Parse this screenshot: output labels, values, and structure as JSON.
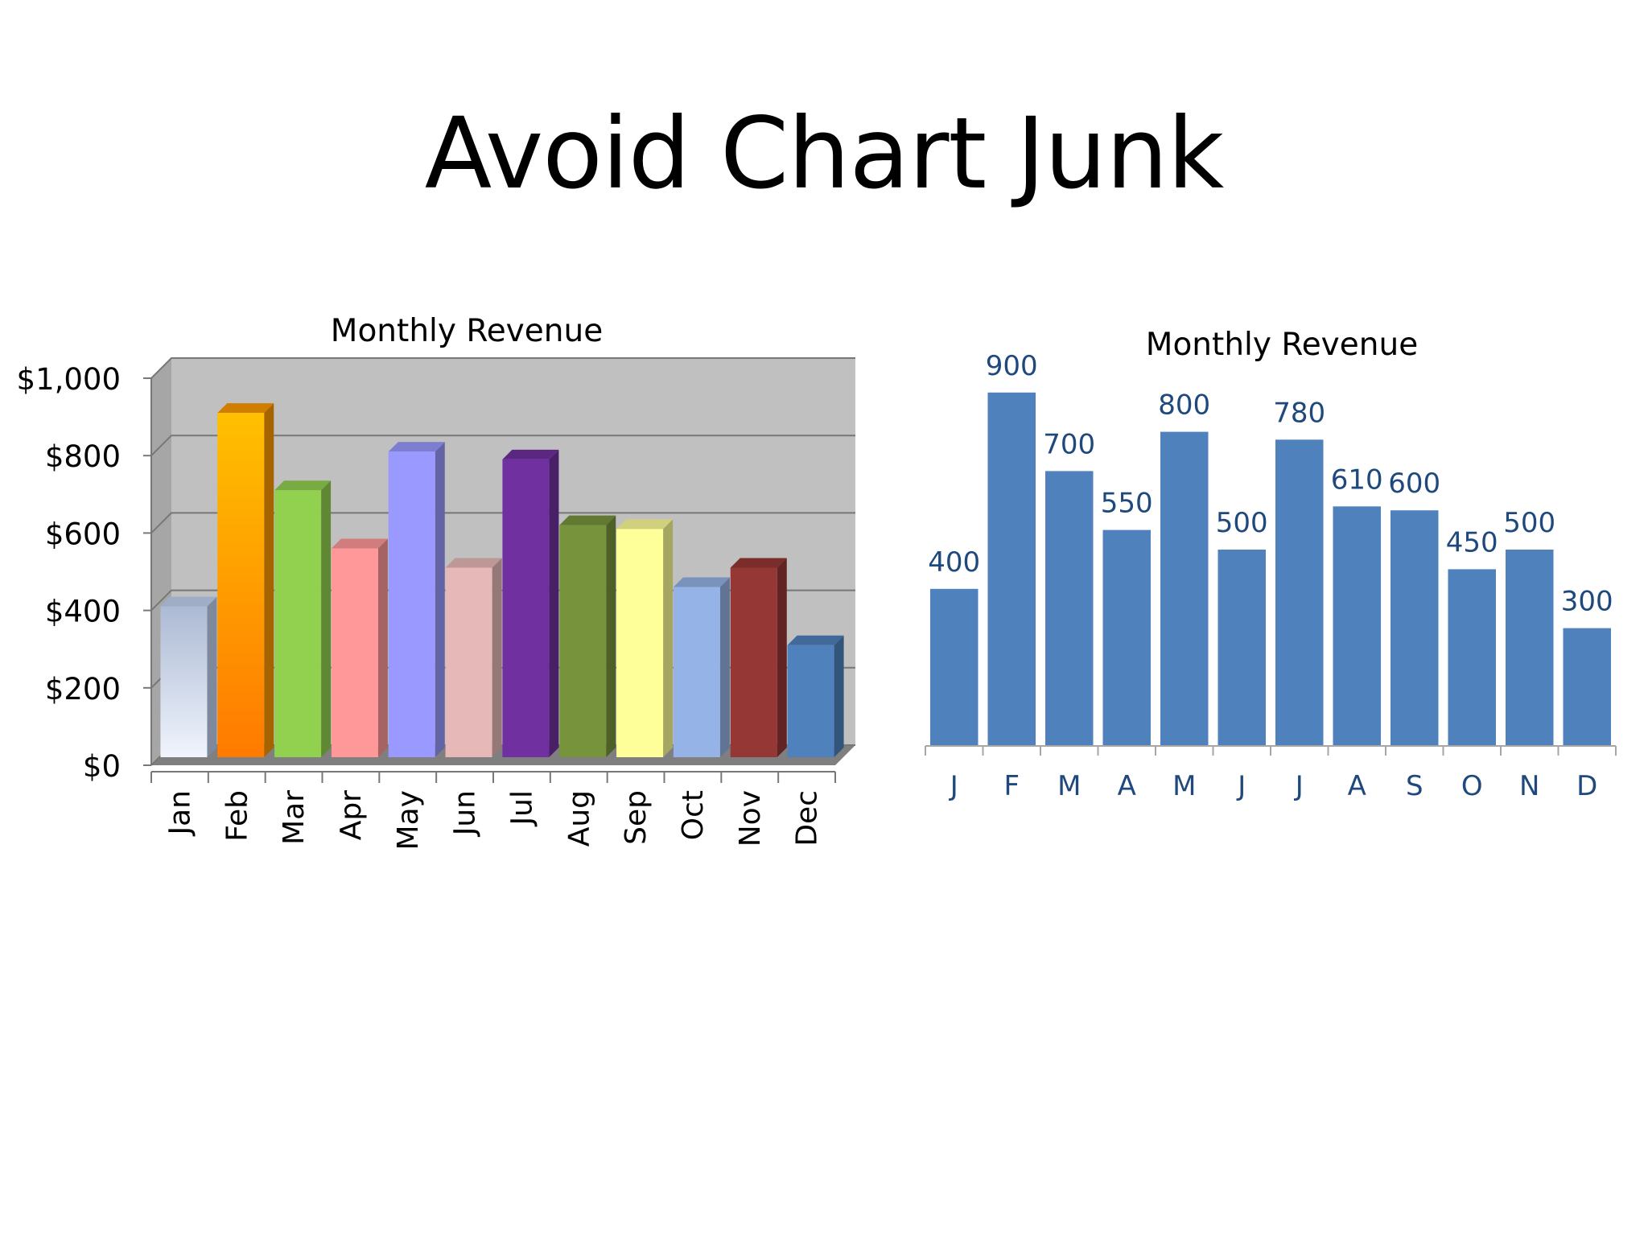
{
  "slide": {
    "title": "Avoid Chart Junk"
  },
  "chart_data": [
    {
      "type": "bar",
      "style": "3d",
      "title": "Monthly Revenue",
      "categories": [
        "Jan",
        "Feb",
        "Mar",
        "Apr",
        "May",
        "Jun",
        "Jul",
        "Aug",
        "Sep",
        "Oct",
        "Nov",
        "Dec"
      ],
      "values": [
        400,
        900,
        700,
        550,
        800,
        500,
        780,
        610,
        600,
        450,
        500,
        300
      ],
      "yticks": [
        "$0",
        "$200",
        "$400",
        "$600",
        "$800",
        "$1,000"
      ],
      "ylim": [
        0,
        1000
      ],
      "grid": true,
      "legend": "none",
      "bar_colors": [
        "#c3d3f1",
        "#ff9a00",
        "#92d050",
        "#ff9999",
        "#9999ff",
        "#e6b9b8",
        "#7030a0",
        "#77933c",
        "#ffff99",
        "#95b3e6",
        "#953735",
        "#4f81bd"
      ],
      "wall_color": "#c0c0c0"
    },
    {
      "type": "bar",
      "title": "Monthly Revenue",
      "categories": [
        "J",
        "F",
        "M",
        "A",
        "M",
        "J",
        "J",
        "A",
        "S",
        "O",
        "N",
        "D"
      ],
      "values": [
        400,
        900,
        700,
        550,
        800,
        500,
        780,
        610,
        600,
        450,
        500,
        300
      ],
      "data_labels": [
        "400",
        "900",
        "700",
        "550",
        "800",
        "500",
        "780",
        "610",
        "600",
        "450",
        "500",
        "300"
      ],
      "ylim": [
        0,
        1000
      ],
      "grid": false,
      "legend": "none",
      "bar_color": "#4f81bd",
      "label_color": "#1f497d"
    }
  ]
}
